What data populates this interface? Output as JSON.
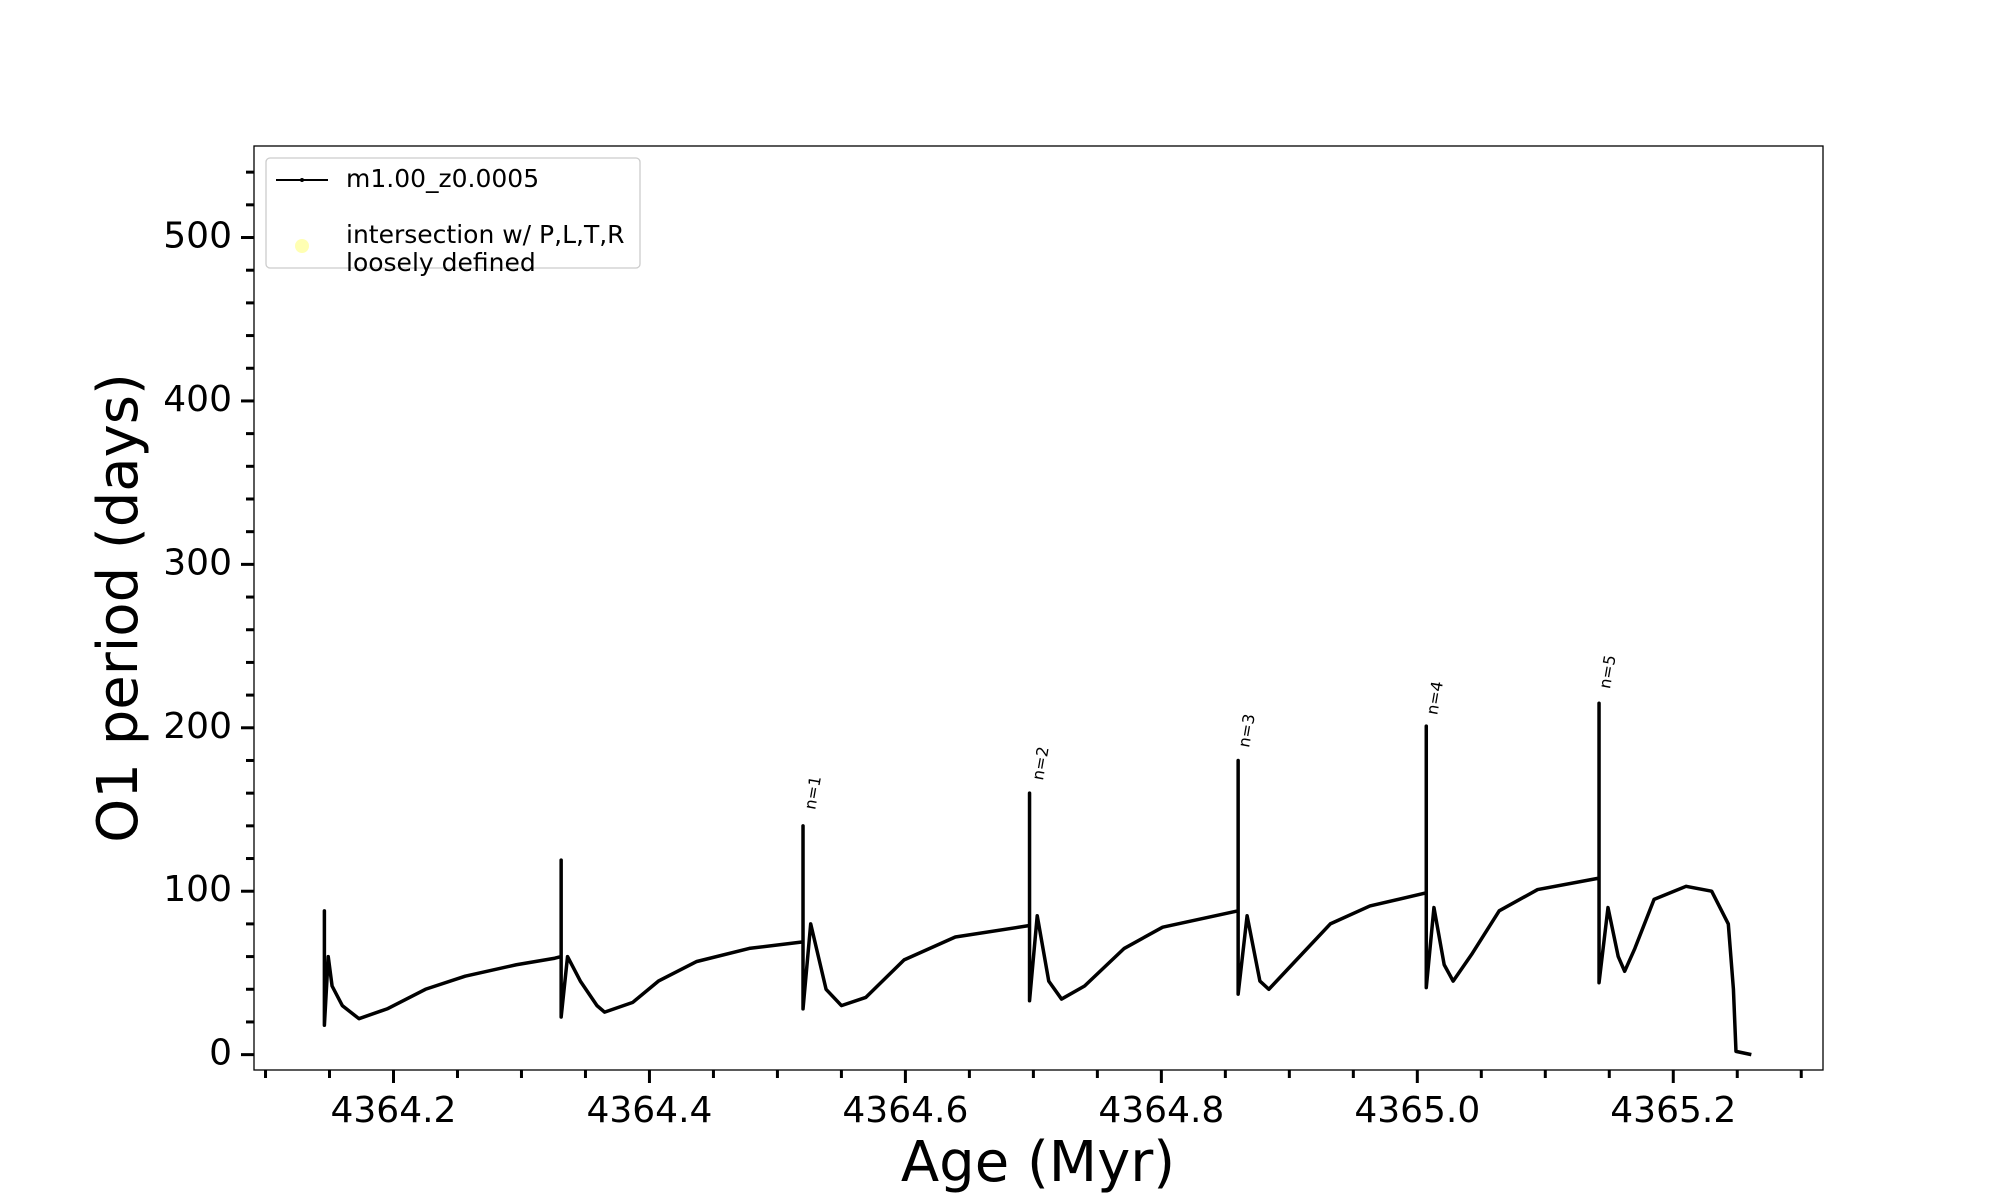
{
  "chart_data": {
    "type": "line",
    "xlabel": "Age (Myr)",
    "ylabel": "O1 period (days)",
    "xlim": [
      4364.091,
      4365.317
    ],
    "ylim": [
      -9.4,
      556
    ],
    "xticks": [
      4364.2,
      4364.4,
      4364.6,
      4364.8,
      {
        "value": 4365,
        "label": "4365.0"
      },
      4365.2
    ],
    "xticks_minor": [
      4364.1,
      4364.15,
      4364.25,
      4364.3,
      4364.35,
      4364.45,
      4364.5,
      4364.55,
      4364.65,
      4364.7,
      4364.75,
      4364.85,
      4364.9,
      4364.95,
      4365.05,
      4365.1,
      4365.15,
      4365.25,
      4365.3
    ],
    "yticks": [
      0,
      100,
      200,
      300,
      400,
      500
    ],
    "yticks_minor": [
      20,
      40,
      60,
      80,
      120,
      140,
      160,
      180,
      220,
      240,
      260,
      280,
      320,
      340,
      360,
      380,
      420,
      440,
      460,
      480,
      520,
      540
    ],
    "legend": "upper left",
    "series": [
      {
        "name": "m1.00_z0.0005",
        "color": "#000000",
        "x": [
          4364.146,
          4364.146,
          4364.146,
          4364.149,
          4364.152,
          4364.16,
          4364.173,
          4364.195,
          4364.225,
          4364.256,
          4364.296,
          4364.326,
          4364.331,
          4364.331,
          4364.331,
          4364.336,
          4364.346,
          4364.359,
          4364.365,
          4364.387,
          4364.407,
          4364.437,
          4364.478,
          4364.52,
          4364.52,
          4364.52,
          4364.526,
          4364.538,
          4364.55,
          4364.569,
          4364.599,
          4364.639,
          4364.697,
          4364.697,
          4364.697,
          4364.703,
          4364.712,
          4364.722,
          4364.74,
          4364.771,
          4364.801,
          4364.86,
          4364.86,
          4364.86,
          4364.867,
          4364.877,
          4364.884,
          4364.902,
          4364.932,
          4364.963,
          4365.007,
          4365.007,
          4365.007,
          4365.013,
          4365.021,
          4365.028,
          4365.043,
          4365.064,
          4365.094,
          4365.142,
          4365.142,
          4365.142,
          4365.149,
          4365.157,
          4365.162,
          4365.17,
          4365.185,
          4365.21,
          4365.23,
          4365.243,
          4365.247,
          4365.249,
          4365.261
        ],
        "values": [
          46,
          88,
          18,
          60,
          42,
          30,
          22,
          28,
          40,
          48,
          55,
          59,
          60,
          119,
          23,
          60,
          45,
          30,
          26,
          32,
          45,
          57,
          65,
          69,
          140,
          28,
          80,
          40,
          30,
          35,
          58,
          72,
          79,
          160,
          33,
          85,
          45,
          34,
          42,
          65,
          78,
          88,
          180,
          37,
          85,
          45,
          40,
          55,
          80,
          91,
          99,
          201,
          41,
          90,
          55,
          45,
          62,
          88,
          101,
          108,
          215,
          44,
          90,
          60,
          51,
          65,
          95,
          103,
          100,
          80,
          40,
          2,
          0
        ]
      },
      {
        "name": "intersection w/ P,L,T,R\nloosely defined",
        "color": "#ffffb3",
        "marker": "o",
        "x": [],
        "values": []
      }
    ],
    "annotations": [
      {
        "text": "n=1",
        "x": 4364.526,
        "y": 150
      },
      {
        "text": "n=2",
        "x": 4364.704,
        "y": 168
      },
      {
        "text": "n=3",
        "x": 4364.865,
        "y": 188
      },
      {
        "text": "n=4",
        "x": 4365.012,
        "y": 208
      },
      {
        "text": "n=5",
        "x": 4365.147,
        "y": 224
      }
    ]
  }
}
